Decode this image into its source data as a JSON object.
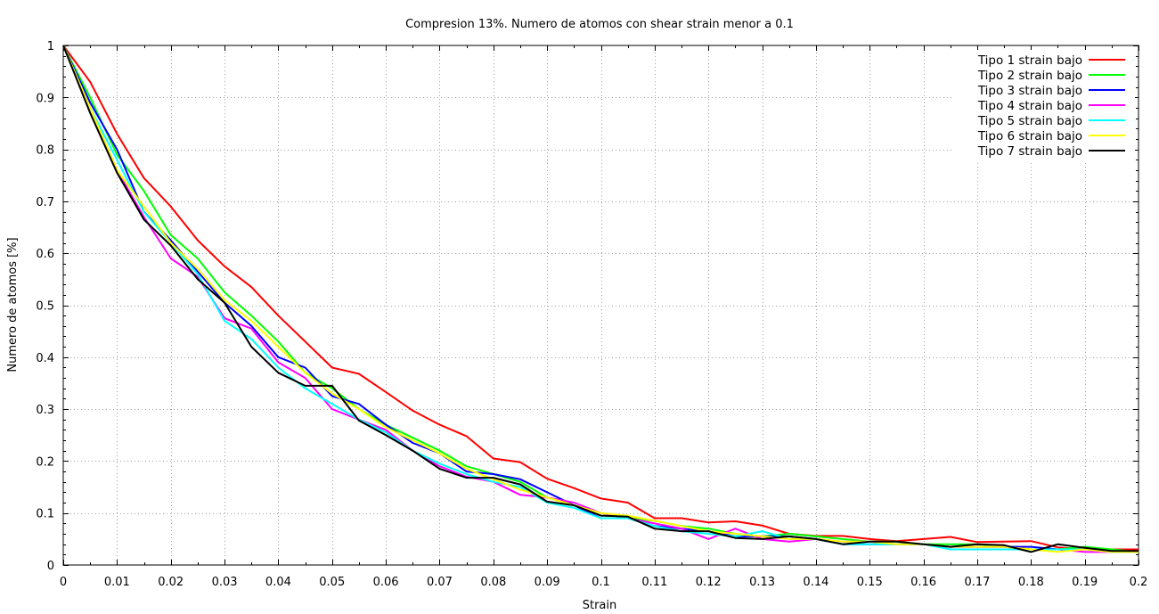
{
  "chart_data": {
    "type": "line",
    "title": "Compresion 13%. Numero de atomos con shear strain menor a 0.1",
    "xlabel": "Strain",
    "ylabel": "Numero de atomos [%]",
    "xlim": [
      0,
      0.2
    ],
    "ylim": [
      0,
      1
    ],
    "xticks": [
      0,
      0.01,
      0.02,
      0.03,
      0.04,
      0.05,
      0.06,
      0.07,
      0.08,
      0.09,
      0.1,
      0.11,
      0.12,
      0.13,
      0.14,
      0.15,
      0.16,
      0.17,
      0.18,
      0.19,
      0.2
    ],
    "xtick_labels": [
      "0",
      "0.01",
      "0.02",
      "0.03",
      "0.04",
      "0.05",
      "0.06",
      "0.07",
      "0.08",
      "0.09",
      "0.1",
      "0.11",
      "0.12",
      "0.13",
      "0.14",
      "0.15",
      "0.16",
      "0.17",
      "0.18",
      "0.19",
      "0.2"
    ],
    "yticks": [
      0,
      0.1,
      0.2,
      0.3,
      0.4,
      0.5,
      0.6,
      0.7,
      0.8,
      0.9,
      1
    ],
    "ytick_labels": [
      "0",
      "0.1",
      "0.2",
      "0.3",
      "0.4",
      "0.5",
      "0.6",
      "0.7",
      "0.8",
      "0.9",
      "1"
    ],
    "grid": true,
    "legend_position": "top-right",
    "x": [
      0,
      0.005,
      0.01,
      0.015,
      0.02,
      0.025,
      0.03,
      0.035,
      0.04,
      0.045,
      0.05,
      0.055,
      0.06,
      0.065,
      0.07,
      0.075,
      0.08,
      0.085,
      0.09,
      0.095,
      0.1,
      0.105,
      0.11,
      0.115,
      0.12,
      0.125,
      0.13,
      0.135,
      0.14,
      0.145,
      0.15,
      0.155,
      0.16,
      0.165,
      0.17,
      0.175,
      0.18,
      0.185,
      0.19,
      0.195,
      0.2
    ],
    "series": [
      {
        "name": "Tipo 1 strain bajo",
        "color": "#ff0000",
        "values": [
          1.0,
          0.93,
          0.83,
          0.745,
          0.69,
          0.625,
          0.575,
          0.535,
          0.48,
          0.43,
          0.38,
          0.368,
          0.333,
          0.297,
          0.27,
          0.248,
          0.205,
          0.198,
          0.166,
          0.148,
          0.128,
          0.12,
          0.09,
          0.09,
          0.082,
          0.084,
          0.076,
          0.06,
          0.056,
          0.056,
          0.05,
          0.046,
          0.05,
          0.054,
          0.044,
          0.045,
          0.046,
          0.034,
          0.03,
          0.03,
          0.03
        ]
      },
      {
        "name": "Tipo 2 strain bajo",
        "color": "#00ff00",
        "values": [
          1.0,
          0.9,
          0.79,
          0.72,
          0.635,
          0.59,
          0.525,
          0.48,
          0.43,
          0.37,
          0.34,
          0.3,
          0.27,
          0.245,
          0.22,
          0.19,
          0.175,
          0.16,
          0.13,
          0.115,
          0.1,
          0.09,
          0.085,
          0.075,
          0.07,
          0.06,
          0.055,
          0.06,
          0.055,
          0.05,
          0.045,
          0.045,
          0.04,
          0.04,
          0.04,
          0.035,
          0.03,
          0.03,
          0.035,
          0.03,
          0.025
        ]
      },
      {
        "name": "Tipo 3 strain bajo",
        "color": "#0000ff",
        "values": [
          1.0,
          0.89,
          0.8,
          0.68,
          0.625,
          0.565,
          0.505,
          0.46,
          0.4,
          0.38,
          0.325,
          0.31,
          0.27,
          0.235,
          0.215,
          0.18,
          0.175,
          0.165,
          0.14,
          0.115,
          0.09,
          0.09,
          0.075,
          0.07,
          0.065,
          0.055,
          0.055,
          0.055,
          0.05,
          0.04,
          0.04,
          0.04,
          0.04,
          0.035,
          0.035,
          0.035,
          0.035,
          0.03,
          0.03,
          0.025,
          0.025
        ]
      },
      {
        "name": "Tipo 4 strain bajo",
        "color": "#ff00ff",
        "values": [
          1.0,
          0.88,
          0.76,
          0.67,
          0.59,
          0.555,
          0.475,
          0.455,
          0.39,
          0.36,
          0.3,
          0.28,
          0.26,
          0.22,
          0.19,
          0.17,
          0.16,
          0.135,
          0.13,
          0.12,
          0.1,
          0.09,
          0.08,
          0.07,
          0.05,
          0.07,
          0.05,
          0.045,
          0.05,
          0.045,
          0.045,
          0.04,
          0.04,
          0.035,
          0.035,
          0.035,
          0.03,
          0.03,
          0.025,
          0.025,
          0.025
        ]
      },
      {
        "name": "Tipo 5 strain bajo",
        "color": "#00ffff",
        "values": [
          1.0,
          0.88,
          0.78,
          0.68,
          0.62,
          0.56,
          0.47,
          0.435,
          0.38,
          0.34,
          0.31,
          0.28,
          0.255,
          0.22,
          0.195,
          0.175,
          0.16,
          0.15,
          0.12,
          0.11,
          0.09,
          0.09,
          0.075,
          0.065,
          0.06,
          0.055,
          0.065,
          0.05,
          0.05,
          0.04,
          0.04,
          0.04,
          0.04,
          0.03,
          0.03,
          0.03,
          0.03,
          0.03,
          0.03,
          0.025,
          0.025
        ]
      },
      {
        "name": "Tipo 6 strain bajo",
        "color": "#ffff00",
        "values": [
          1.0,
          0.88,
          0.76,
          0.69,
          0.62,
          0.57,
          0.51,
          0.47,
          0.42,
          0.37,
          0.33,
          0.3,
          0.265,
          0.24,
          0.215,
          0.185,
          0.165,
          0.145,
          0.13,
          0.115,
          0.1,
          0.095,
          0.085,
          0.075,
          0.065,
          0.06,
          0.055,
          0.05,
          0.05,
          0.045,
          0.045,
          0.04,
          0.04,
          0.035,
          0.035,
          0.035,
          0.03,
          0.025,
          0.03,
          0.025,
          0.025
        ]
      },
      {
        "name": "Tipo 7 strain bajo",
        "color": "#000000",
        "values": [
          1.0,
          0.87,
          0.755,
          0.665,
          0.615,
          0.55,
          0.505,
          0.42,
          0.37,
          0.345,
          0.345,
          0.278,
          0.25,
          0.22,
          0.185,
          0.168,
          0.168,
          0.155,
          0.122,
          0.115,
          0.095,
          0.093,
          0.07,
          0.065,
          0.065,
          0.052,
          0.05,
          0.055,
          0.05,
          0.04,
          0.045,
          0.045,
          0.04,
          0.035,
          0.04,
          0.038,
          0.025,
          0.04,
          0.033,
          0.027,
          0.027
        ]
      }
    ]
  }
}
